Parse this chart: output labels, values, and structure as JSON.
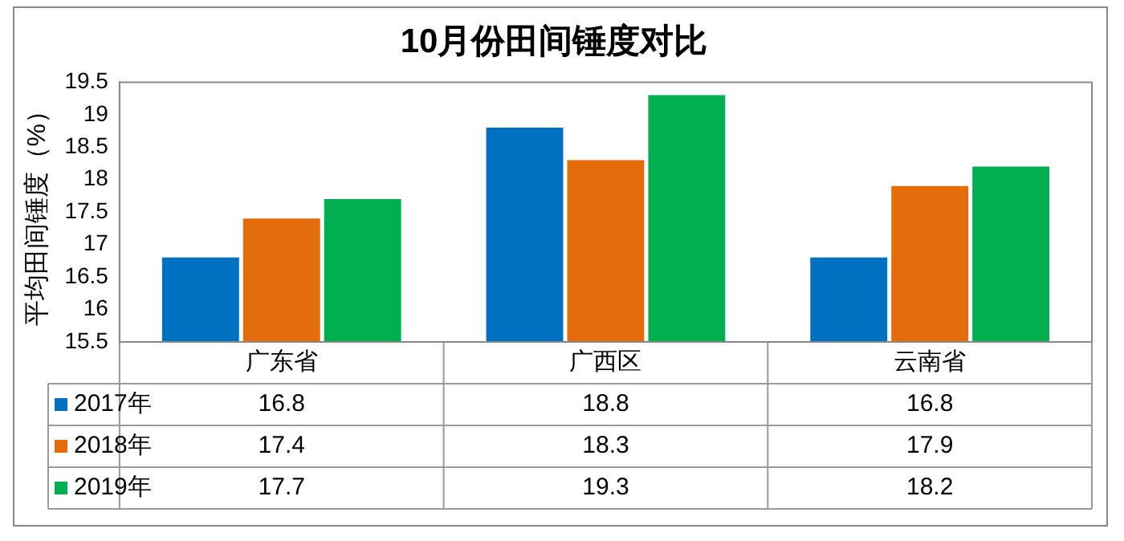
{
  "chart_data": {
    "type": "bar",
    "title": "10月份田间锤度对比",
    "ylabel": "平均田间锤度（%）",
    "categories": [
      "广东省",
      "广西区",
      "云南省"
    ],
    "series": [
      {
        "name": "2017年",
        "color": "#0070c0",
        "values": [
          16.8,
          18.8,
          16.8
        ]
      },
      {
        "name": "2018年",
        "color": "#e46c0a",
        "values": [
          17.4,
          18.3,
          17.9
        ]
      },
      {
        "name": "2019年",
        "color": "#00b050",
        "values": [
          17.7,
          19.3,
          18.2
        ]
      }
    ],
    "ylim": [
      15.5,
      19.5
    ],
    "yticks": [
      15.5,
      16,
      16.5,
      17,
      17.5,
      18,
      18.5,
      19,
      19.5
    ],
    "grid": false,
    "legend": "bottom",
    "data_labels": true
  }
}
